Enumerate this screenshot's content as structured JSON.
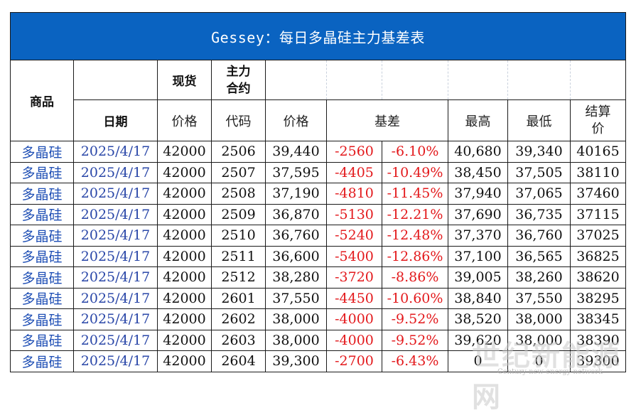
{
  "title": "Gessey：每日多晶硅主力基差表",
  "header1": {
    "product": "商品",
    "spot": "现货",
    "main_contract": "主力\n合约"
  },
  "header2": {
    "date": "日期",
    "price": "价格",
    "code": "代码",
    "contract_price": "价格",
    "basis": "基差",
    "high": "最高",
    "low": "最低",
    "settle": "结算价"
  },
  "rows": [
    {
      "product": "多晶硅",
      "date": "2025/4/17",
      "spot": "42000",
      "code": "2506",
      "price": "39,440",
      "basis": "-2560",
      "basis_pct": "-6.10%",
      "high": "40,680",
      "low": "39,340",
      "settle": "40165"
    },
    {
      "product": "多晶硅",
      "date": "2025/4/17",
      "spot": "42000",
      "code": "2507",
      "price": "37,595",
      "basis": "-4405",
      "basis_pct": "-10.49%",
      "high": "38,450",
      "low": "37,505",
      "settle": "38110"
    },
    {
      "product": "多晶硅",
      "date": "2025/4/17",
      "spot": "42000",
      "code": "2508",
      "price": "37,190",
      "basis": "-4810",
      "basis_pct": "-11.45%",
      "high": "37,940",
      "low": "37,065",
      "settle": "37460"
    },
    {
      "product": "多晶硅",
      "date": "2025/4/17",
      "spot": "42000",
      "code": "2509",
      "price": "36,870",
      "basis": "-5130",
      "basis_pct": "-12.21%",
      "high": "37,690",
      "low": "36,735",
      "settle": "37115"
    },
    {
      "product": "多晶硅",
      "date": "2025/4/17",
      "spot": "42000",
      "code": "2510",
      "price": "36,760",
      "basis": "-5240",
      "basis_pct": "-12.48%",
      "high": "37,370",
      "low": "36,760",
      "settle": "37025"
    },
    {
      "product": "多晶硅",
      "date": "2025/4/17",
      "spot": "42000",
      "code": "2511",
      "price": "36,600",
      "basis": "-5400",
      "basis_pct": "-12.86%",
      "high": "37,100",
      "low": "36,565",
      "settle": "36825"
    },
    {
      "product": "多晶硅",
      "date": "2025/4/17",
      "spot": "42000",
      "code": "2512",
      "price": "38,280",
      "basis": "-3720",
      "basis_pct": "-8.86%",
      "high": "39,005",
      "low": "38,260",
      "settle": "38620"
    },
    {
      "product": "多晶硅",
      "date": "2025/4/17",
      "spot": "42000",
      "code": "2601",
      "price": "37,550",
      "basis": "-4450",
      "basis_pct": "-10.60%",
      "high": "38,840",
      "low": "37,550",
      "settle": "38295"
    },
    {
      "product": "多晶硅",
      "date": "2025/4/17",
      "spot": "42000",
      "code": "2602",
      "price": "38,000",
      "basis": "-4000",
      "basis_pct": "-9.52%",
      "high": "38,520",
      "low": "38,000",
      "settle": "38345"
    },
    {
      "product": "多晶硅",
      "date": "2025/4/17",
      "spot": "42000",
      "code": "2603",
      "price": "38,000",
      "basis": "-4000",
      "basis_pct": "-9.52%",
      "high": "39,620",
      "low": "38,000",
      "settle": "38390"
    },
    {
      "product": "多晶硅",
      "date": "2025/4/17",
      "spot": "42000",
      "code": "2604",
      "price": "39,300",
      "basis": "-2700",
      "basis_pct": "-6.43%",
      "high": "0",
      "low": "0",
      "settle": "39300"
    }
  ],
  "watermark": {
    "main": "世纪新能源网",
    "sub": "Century new energy network"
  },
  "colors": {
    "title_bg": "#0a63c1",
    "negative": "#e3191c",
    "product_text": "#1f4fb5",
    "date_text": "#2a47a8"
  }
}
